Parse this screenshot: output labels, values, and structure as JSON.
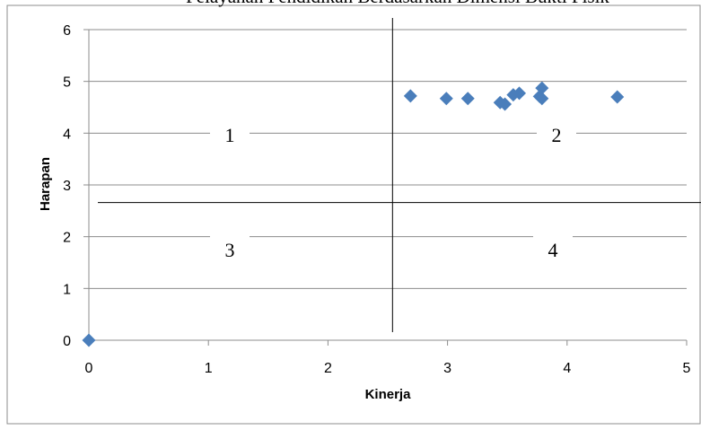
{
  "chart_data": {
    "type": "scatter",
    "title": "Pelayanan Pendidikan Berdasarkan Dimensi Bukti Fisik",
    "xlabel": "Kinerja",
    "ylabel": "Harapan",
    "xlim": [
      0,
      5
    ],
    "ylim": [
      0,
      6
    ],
    "xticks": [
      "0",
      "1",
      "2",
      "3",
      "4",
      "5"
    ],
    "yticks": [
      "0",
      "1",
      "2",
      "3",
      "4",
      "5",
      "6"
    ],
    "grid": "horizontal",
    "legend": "none",
    "marker_color": "#4a7ebb",
    "quadrant_lines": {
      "x": 2.54,
      "y": 2.66
    },
    "quadrant_labels": [
      "1",
      "2",
      "3",
      "4"
    ],
    "points": [
      {
        "x": 0.0,
        "y": 0.0
      },
      {
        "x": 2.69,
        "y": 4.72
      },
      {
        "x": 2.99,
        "y": 4.67
      },
      {
        "x": 3.17,
        "y": 4.67
      },
      {
        "x": 3.44,
        "y": 4.59
      },
      {
        "x": 3.48,
        "y": 4.56
      },
      {
        "x": 3.55,
        "y": 4.74
      },
      {
        "x": 3.6,
        "y": 4.77
      },
      {
        "x": 3.77,
        "y": 4.71
      },
      {
        "x": 3.79,
        "y": 4.67
      },
      {
        "x": 3.79,
        "y": 4.87
      },
      {
        "x": 4.42,
        "y": 4.7
      }
    ]
  }
}
